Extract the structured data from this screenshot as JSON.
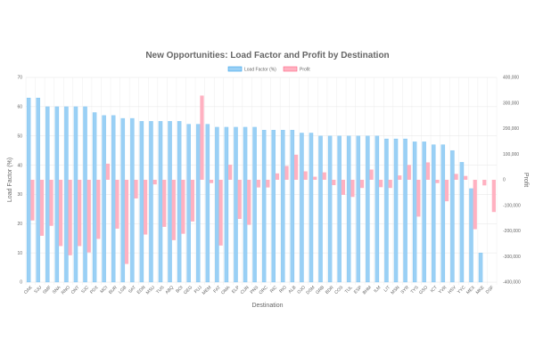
{
  "chart_data": {
    "type": "bar",
    "title": "New Opportunities: Load Factor and Profit by Destination",
    "xlabel": "Destination",
    "ylabel": "Load Factor (%)",
    "y2label": "Profit",
    "ylim": [
      0,
      70
    ],
    "y2lim": [
      -400000,
      400000
    ],
    "yticks": [
      "0",
      "10",
      "20",
      "30",
      "40",
      "50",
      "60",
      "70"
    ],
    "y2ticks": [
      "-400,000",
      "-300,000",
      "-200,000",
      "-100,000",
      "0",
      "100,000",
      "200,000",
      "300,000",
      "400,000"
    ],
    "legend_position": "top",
    "grid": true,
    "categories": [
      "OAK",
      "SJU",
      "SMF",
      "SNA",
      "RNO",
      "ONT",
      "SJC",
      "PDX",
      "MCI",
      "BUR",
      "LGB",
      "SAT",
      "EDN",
      "MSU",
      "TUS",
      "ABQ",
      "BOI",
      "GEG",
      "PUJ",
      "MEM",
      "FAT",
      "OMA",
      "ELP",
      "CUN",
      "PNS",
      "ORC",
      "RIC",
      "RIO",
      "ALB",
      "OJO",
      "DSM",
      "GRB",
      "BDR",
      "COS",
      "TUL",
      "ESP",
      "BHM",
      "ILM",
      "LIT",
      "MSN",
      "SYR",
      "TYS",
      "GSO",
      "ICT",
      "YVR",
      "HSV",
      "YYC",
      "MEX",
      "MKE",
      "DSF"
    ],
    "series": [
      {
        "name": "Load Factor (%)",
        "axis": "left",
        "color": "#9AD0F5",
        "border": "#36A2EB",
        "values": [
          63,
          63,
          60,
          60,
          60,
          60,
          60,
          58,
          57,
          57,
          56,
          56,
          55,
          55,
          55,
          55,
          55,
          54,
          54,
          54,
          53,
          53,
          53,
          53,
          53,
          52,
          52,
          52,
          52,
          51,
          51,
          50,
          50,
          50,
          50,
          50,
          50,
          50,
          49,
          49,
          49,
          48,
          48,
          47,
          47,
          45,
          41,
          32,
          10,
          0
        ]
      },
      {
        "name": "Profit",
        "axis": "right",
        "color": "#FFB1C1",
        "border": "#FF6384",
        "values": [
          -159000,
          -219000,
          -180000,
          -259000,
          -295000,
          -259000,
          -284000,
          -231000,
          63000,
          -191000,
          -329000,
          -73000,
          -214000,
          -18000,
          -184000,
          -236000,
          -211000,
          -163000,
          329000,
          -13000,
          -257000,
          59000,
          -153000,
          -176000,
          -30000,
          -30000,
          25000,
          54000,
          98000,
          33000,
          12000,
          29000,
          -21000,
          -59000,
          -67000,
          -32000,
          40000,
          -29000,
          -32000,
          17000,
          58000,
          -144000,
          68000,
          -13000,
          -84000,
          23000,
          15000,
          -193000,
          -22000,
          -126000
        ]
      }
    ]
  }
}
